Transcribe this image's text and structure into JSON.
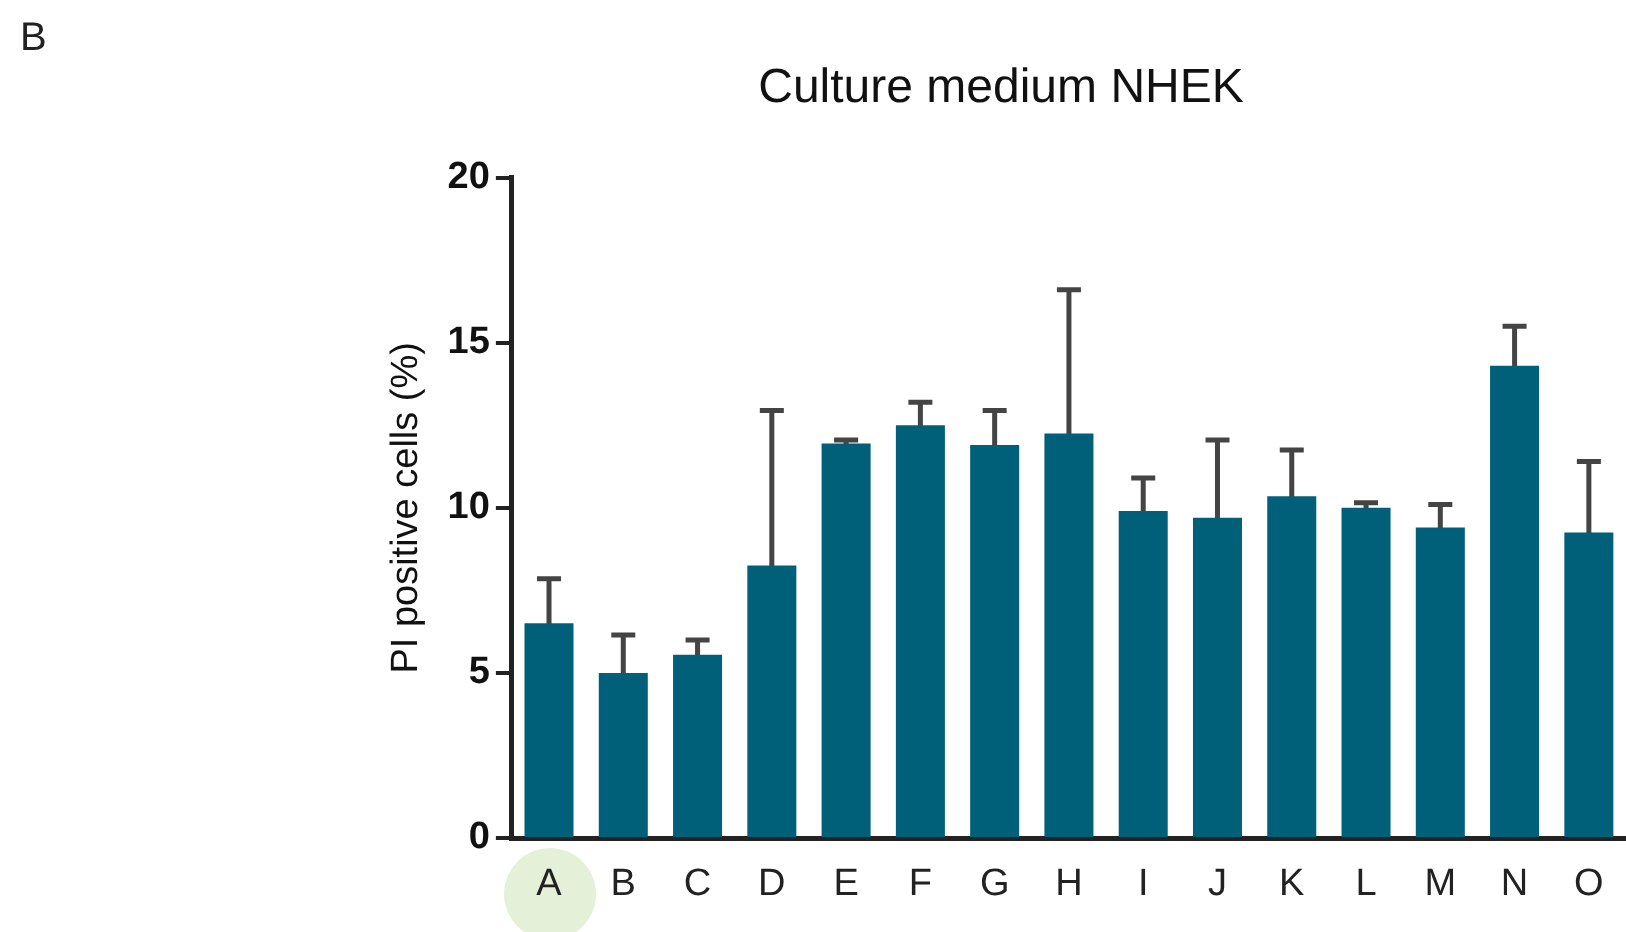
{
  "chart_data": {
    "type": "bar",
    "title": "Culture medium NHEK",
    "ylabel": "PI positive cells (%)",
    "annotations": [
      "B"
    ],
    "categories": [
      "A",
      "B",
      "C",
      "D",
      "E",
      "F",
      "G",
      "H",
      "I",
      "J",
      "K",
      "L",
      "M",
      "N",
      "O"
    ],
    "values": [
      6.5,
      5.0,
      5.55,
      8.25,
      11.95,
      12.5,
      11.9,
      12.25,
      9.9,
      9.7,
      10.35,
      10.0,
      9.4,
      14.3,
      9.25
    ],
    "errors": [
      1.35,
      1.15,
      0.45,
      4.7,
      0.1,
      0.7,
      1.05,
      4.35,
      1.0,
      2.35,
      1.4,
      0.15,
      0.7,
      1.2,
      2.15
    ],
    "color": "#00607a",
    "ylim": [
      0,
      20
    ],
    "yticks": [
      0,
      5,
      10,
      15,
      20
    ],
    "grid": false,
    "legend": false
  }
}
